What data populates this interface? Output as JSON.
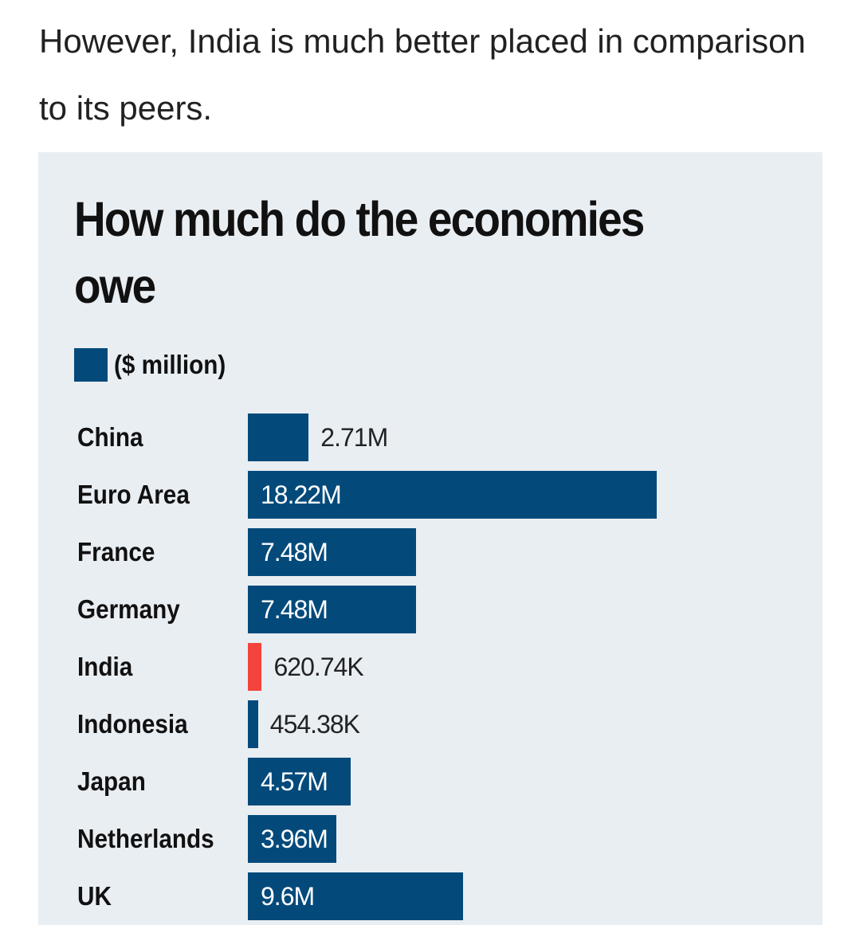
{
  "intro_text": "However, India is much better placed in comparison to its peers.",
  "colors": {
    "bar": "#034a7b",
    "highlight": "#f4433c",
    "card_background": "#e9eef3",
    "value_label_inside": "#ffffff",
    "value_label_outside": "#222222"
  },
  "chart_data": {
    "type": "bar",
    "orientation": "horizontal",
    "title": "How much do the economies owe",
    "legend": [
      {
        "label": "($ million)",
        "color": "#034a7b"
      }
    ],
    "categories": [
      "China",
      "Euro Area",
      "France",
      "Germany",
      "India",
      "Indonesia",
      "Japan",
      "Netherlands",
      "UK"
    ],
    "values": [
      2.71,
      18.22,
      7.48,
      7.48,
      0.62074,
      0.45438,
      4.57,
      3.96,
      9.6
    ],
    "value_unit": "M",
    "value_labels": [
      "2.71M",
      "18.22M",
      "7.48M",
      "7.48M",
      "620.74K",
      "454.38K",
      "4.57M",
      "3.96M",
      "9.6M"
    ],
    "highlight": "India",
    "xlim": [
      0,
      18.22
    ],
    "grid": false
  }
}
